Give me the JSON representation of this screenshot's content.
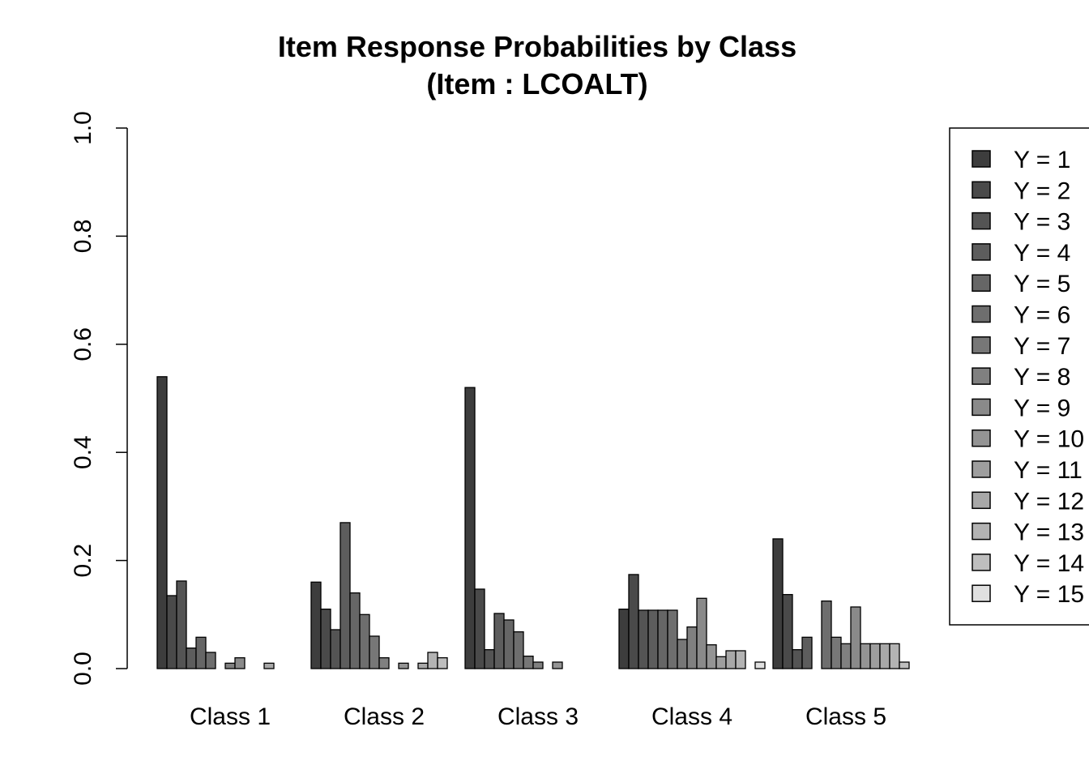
{
  "chart_data": {
    "type": "bar",
    "title": "Item Response Probabilities by Class",
    "subtitle": "(Item : LCOALT)",
    "xlabel": "",
    "ylabel": "",
    "ylim": [
      0,
      1
    ],
    "y_ticks": [
      "0.0",
      "0.2",
      "0.4",
      "0.6",
      "0.8",
      "1.0"
    ],
    "grid": false,
    "legend_position": "right",
    "categories": [
      "Class 1",
      "Class 2",
      "Class 3",
      "Class 4",
      "Class 5"
    ],
    "series": [
      {
        "name": "Y = 1",
        "color": "#3d3d3d",
        "values": [
          0.54,
          0.16,
          0.52,
          0.11,
          0.24
        ]
      },
      {
        "name": "Y = 2",
        "color": "#4a4a4a",
        "values": [
          0.135,
          0.11,
          0.147,
          0.174,
          0.137
        ]
      },
      {
        "name": "Y = 3",
        "color": "#545454",
        "values": [
          0.162,
          0.072,
          0.035,
          0.108,
          0.035
        ]
      },
      {
        "name": "Y = 4",
        "color": "#5d5d5d",
        "values": [
          0.038,
          0.27,
          0.102,
          0.108,
          0.058
        ]
      },
      {
        "name": "Y = 5",
        "color": "#666666",
        "values": [
          0.058,
          0.14,
          0.09,
          0.108,
          0.0
        ]
      },
      {
        "name": "Y = 6",
        "color": "#6e6e6e",
        "values": [
          0.03,
          0.1,
          0.068,
          0.108,
          0.125
        ]
      },
      {
        "name": "Y = 7",
        "color": "#777777",
        "values": [
          0.0,
          0.06,
          0.023,
          0.054,
          0.058
        ]
      },
      {
        "name": "Y = 8",
        "color": "#808080",
        "values": [
          0.01,
          0.02,
          0.012,
          0.077,
          0.046
        ]
      },
      {
        "name": "Y = 9",
        "color": "#8a8a8a",
        "values": [
          0.02,
          0.0,
          0.0,
          0.13,
          0.114
        ]
      },
      {
        "name": "Y = 10",
        "color": "#949494",
        "values": [
          0.0,
          0.01,
          0.012,
          0.044,
          0.046
        ]
      },
      {
        "name": "Y = 11",
        "color": "#9e9e9e",
        "values": [
          0.0,
          0.0,
          0.0,
          0.022,
          0.046
        ]
      },
      {
        "name": "Y = 12",
        "color": "#a8a8a8",
        "values": [
          0.01,
          0.01,
          0.0,
          0.033,
          0.046
        ]
      },
      {
        "name": "Y = 13",
        "color": "#b3b3b3",
        "values": [
          0.0,
          0.03,
          0.0,
          0.033,
          0.046
        ]
      },
      {
        "name": "Y = 14",
        "color": "#bebebe",
        "values": [
          0.0,
          0.02,
          0.0,
          0.0,
          0.012
        ]
      },
      {
        "name": "Y = 15",
        "color": "#e0e0e0",
        "values": [
          0.0,
          0.0,
          0.0,
          0.012,
          0.0
        ]
      }
    ]
  }
}
